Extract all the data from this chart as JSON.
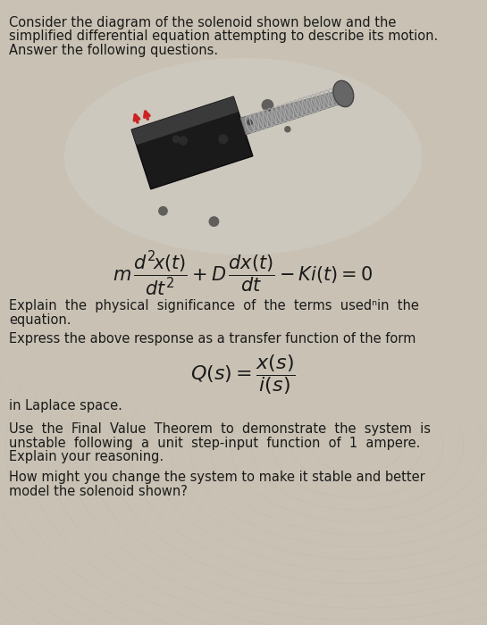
{
  "bg_color": "#c9c2b4",
  "text_color": "#1a1a1a",
  "font_size_body": 10.5,
  "title_lines": [
    "Consider the diagram of the solenoid shown below and the",
    "simplified differential equation attempting to describe its motion.",
    "Answer the following questions."
  ],
  "explain_lines": [
    "Explain  the  physical  significance  of  the  terms  used ⁿin  the",
    "equation."
  ],
  "express_line": "Express the above response as a transfer function of the form",
  "laplace_line": "in Laplace space.",
  "fvt_lines": [
    "Use  the  Final  Value  Theorem  to  demonstrate  the  system  is",
    "unstable  following  a  unit  step-input  function  of  1  ampere.",
    "Explain your reasoning."
  ],
  "last_lines": [
    "How might you change the system to make it stable and better",
    "model the solenoid shown?"
  ]
}
